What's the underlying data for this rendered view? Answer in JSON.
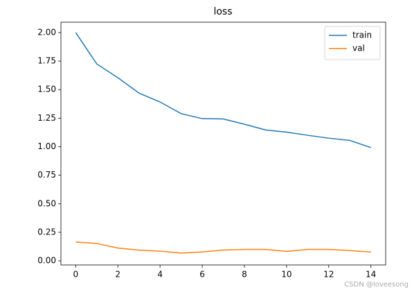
{
  "chart_data": {
    "type": "line",
    "title": "loss",
    "x": [
      0,
      1,
      2,
      3,
      4,
      5,
      6,
      7,
      8,
      9,
      10,
      11,
      12,
      13,
      14
    ],
    "series": [
      {
        "name": "train",
        "color": "#1f77b4",
        "values": [
          2.0,
          1.725,
          1.605,
          1.47,
          1.392,
          1.29,
          1.246,
          1.243,
          1.197,
          1.147,
          1.128,
          1.1,
          1.075,
          1.055,
          0.992
        ]
      },
      {
        "name": "val",
        "color": "#ff7f0e",
        "values": [
          0.165,
          0.152,
          0.112,
          0.094,
          0.085,
          0.068,
          0.078,
          0.095,
          0.1,
          0.1,
          0.083,
          0.1,
          0.1,
          0.09,
          0.077
        ]
      }
    ],
    "xlim": [
      -0.7,
      14.7
    ],
    "xticks": [
      0,
      2,
      4,
      6,
      8,
      10,
      12,
      14
    ],
    "ylim": [
      -0.036,
      2.091
    ],
    "yticks": [
      {
        "value": 0,
        "label": "0.00"
      },
      {
        "value": 0.25,
        "label": "0.25"
      },
      {
        "value": 0.5,
        "label": "0.50"
      },
      {
        "value": 0.75,
        "label": "0.75"
      },
      {
        "value": 1.0,
        "label": "1.00"
      },
      {
        "value": 1.25,
        "label": "1.25"
      },
      {
        "value": 1.5,
        "label": "1.50"
      },
      {
        "value": 1.75,
        "label": "1.75"
      },
      {
        "value": 2.0,
        "label": "2.00"
      }
    ],
    "legend": "upper right",
    "grid": false,
    "watermark": "CSDN @loveesong"
  }
}
